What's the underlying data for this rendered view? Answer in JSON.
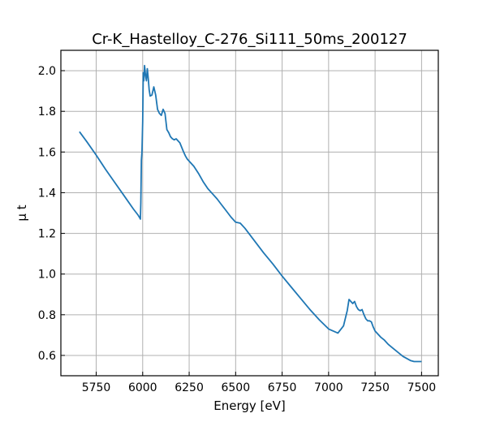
{
  "chart_data": {
    "type": "line",
    "title": "Cr-K_Hastelloy_C-276_Si111_50ms_200127",
    "xlabel": "Energy [eV]",
    "ylabel": "μ t",
    "xlim": [
      5560,
      7590
    ],
    "ylim": [
      0.5,
      2.1
    ],
    "x_ticks": [
      5750,
      6000,
      6250,
      6500,
      6750,
      7000,
      7250,
      7500
    ],
    "y_ticks": [
      0.6,
      0.8,
      1.0,
      1.2,
      1.4,
      1.6,
      1.8,
      2.0
    ],
    "x_tick_labels": [
      "5750",
      "6000",
      "6250",
      "6500",
      "6750",
      "7000",
      "7250",
      "7500"
    ],
    "y_tick_labels": [
      "0.6",
      "0.8",
      "1.0",
      "1.2",
      "1.4",
      "1.6",
      "1.8",
      "2.0"
    ],
    "grid": true,
    "line_color": "#1f77b4",
    "series": [
      {
        "x": [
          5660,
          5700,
          5750,
          5800,
          5850,
          5900,
          5950,
          5975,
          5985,
          5988,
          5990,
          5993,
          5996,
          6000,
          6003,
          6006,
          6010,
          6015,
          6020,
          6025,
          6030,
          6035,
          6040,
          6050,
          6060,
          6070,
          6080,
          6090,
          6100,
          6110,
          6120,
          6130,
          6140,
          6150,
          6160,
          6170,
          6180,
          6200,
          6220,
          6230,
          6240,
          6250,
          6275,
          6300,
          6325,
          6350,
          6375,
          6400,
          6425,
          6450,
          6475,
          6500,
          6525,
          6550,
          6575,
          6600,
          6650,
          6700,
          6750,
          6800,
          6850,
          6900,
          6950,
          7000,
          7050,
          7080,
          7100,
          7110,
          7120,
          7130,
          7140,
          7150,
          7160,
          7170,
          7180,
          7190,
          7200,
          7210,
          7220,
          7230,
          7240,
          7250,
          7260,
          7270,
          7280,
          7300,
          7320,
          7340,
          7360,
          7380,
          7400,
          7420,
          7440,
          7460,
          7480,
          7500
        ],
        "y": [
          1.7,
          1.65,
          1.585,
          1.515,
          1.45,
          1.385,
          1.32,
          1.29,
          1.275,
          1.27,
          1.35,
          1.56,
          1.6,
          1.75,
          1.99,
          1.95,
          2.025,
          1.98,
          1.95,
          2.01,
          1.96,
          1.905,
          1.875,
          1.88,
          1.92,
          1.88,
          1.81,
          1.79,
          1.78,
          1.81,
          1.79,
          1.71,
          1.695,
          1.675,
          1.665,
          1.66,
          1.665,
          1.645,
          1.6,
          1.58,
          1.565,
          1.555,
          1.53,
          1.495,
          1.455,
          1.42,
          1.395,
          1.37,
          1.34,
          1.31,
          1.28,
          1.255,
          1.25,
          1.225,
          1.195,
          1.165,
          1.105,
          1.05,
          0.99,
          0.935,
          0.88,
          0.825,
          0.775,
          0.73,
          0.71,
          0.745,
          0.82,
          0.875,
          0.865,
          0.855,
          0.865,
          0.84,
          0.825,
          0.82,
          0.825,
          0.8,
          0.78,
          0.77,
          0.77,
          0.765,
          0.74,
          0.72,
          0.71,
          0.7,
          0.69,
          0.675,
          0.655,
          0.64,
          0.625,
          0.61,
          0.595,
          0.585,
          0.575,
          0.57,
          0.57,
          0.57
        ]
      }
    ]
  }
}
